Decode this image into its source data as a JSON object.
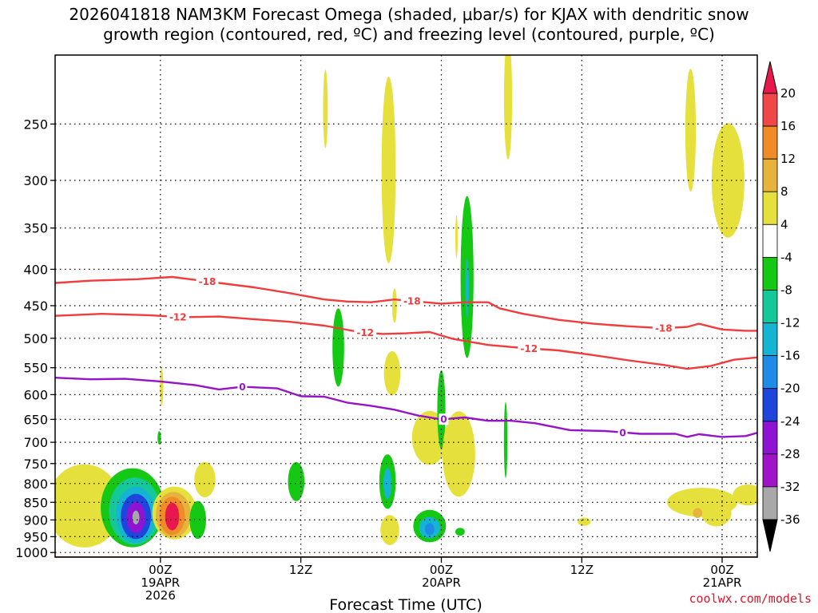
{
  "chart_data": {
    "type": "time-height cross section",
    "title_line1": "2026041818 NAM3KM Forecast Omega (shaded, μbar/s) for KJAX with dendritic snow",
    "title_line2": "growth region (contoured, red, ºC) and freezing level (contoured, purple, ºC)",
    "xlabel": "Forecast Time (UTC)",
    "credit": "coolwx.com/models",
    "y_ticks": [
      {
        "p": 250,
        "label": "250"
      },
      {
        "p": 300,
        "label": "300"
      },
      {
        "p": 350,
        "label": "350"
      },
      {
        "p": 400,
        "label": "400"
      },
      {
        "p": 450,
        "label": "450"
      },
      {
        "p": 500,
        "label": "500"
      },
      {
        "p": 550,
        "label": "550"
      },
      {
        "p": 600,
        "label": "600"
      },
      {
        "p": 650,
        "label": "650"
      },
      {
        "p": 700,
        "label": "700"
      },
      {
        "p": 750,
        "label": "750"
      },
      {
        "p": 800,
        "label": "800"
      },
      {
        "p": 850,
        "label": "850"
      },
      {
        "p": 900,
        "label": "900"
      },
      {
        "p": 950,
        "label": "950"
      },
      {
        "p": 1000,
        "label": "1000"
      }
    ],
    "ylim_hpa": [
      200,
      1015
    ],
    "xlim_hours": [
      -9,
      51
    ],
    "x_ticks": [
      {
        "h": 0,
        "lines": [
          "00Z",
          "19APR",
          "2026"
        ]
      },
      {
        "h": 12,
        "lines": [
          "12Z"
        ]
      },
      {
        "h": 24,
        "lines": [
          "00Z",
          "20APR"
        ]
      },
      {
        "h": 36,
        "lines": [
          "12Z"
        ]
      },
      {
        "h": 48,
        "lines": [
          "00Z",
          "21APR"
        ]
      }
    ],
    "colorbar": {
      "labels": [
        "20",
        "16",
        "12",
        "8",
        "4",
        "-4",
        "-8",
        "-12",
        "-16",
        "-20",
        "-24",
        "-28",
        "-32",
        "-36"
      ],
      "colors": [
        "#e8184e",
        "#f04848",
        "#f08c28",
        "#e6b43c",
        "#e6e03c",
        "#ffffff",
        "#14c814",
        "#14c89a",
        "#14b4d2",
        "#1e8ce6",
        "#1e46dc",
        "#8c14d2",
        "#a014c8",
        "#a8a8a8",
        "#000000"
      ]
    },
    "contours": [
      {
        "name": "-18 °C",
        "label": "-18",
        "color": "#f03c3c",
        "points": [
          [
            -9,
            418
          ],
          [
            -6,
            415
          ],
          [
            -2,
            413
          ],
          [
            1,
            410
          ],
          [
            3,
            414
          ],
          [
            5,
            418
          ],
          [
            8,
            424
          ],
          [
            11,
            432
          ],
          [
            14,
            441
          ],
          [
            16,
            444
          ],
          [
            18,
            445
          ],
          [
            20,
            441
          ],
          [
            22,
            444
          ],
          [
            24,
            447
          ],
          [
            26,
            445
          ],
          [
            28,
            445
          ],
          [
            29,
            454
          ],
          [
            31,
            462
          ],
          [
            34,
            471
          ],
          [
            37,
            477
          ],
          [
            40,
            481
          ],
          [
            43,
            484
          ],
          [
            45,
            482
          ],
          [
            46,
            477
          ],
          [
            48,
            486
          ],
          [
            50,
            488
          ],
          [
            51,
            488
          ]
        ],
        "labels_at_h": [
          4,
          21.5,
          43
        ]
      },
      {
        "name": "-12 °C",
        "label": "-12",
        "color": "#f03c3c",
        "points": [
          [
            -9,
            465
          ],
          [
            -5,
            462
          ],
          [
            -1,
            464
          ],
          [
            2,
            467
          ],
          [
            5,
            466
          ],
          [
            8,
            470
          ],
          [
            11,
            474
          ],
          [
            14,
            480
          ],
          [
            17,
            490
          ],
          [
            19,
            493
          ],
          [
            21,
            492
          ],
          [
            23,
            490
          ],
          [
            25,
            501
          ],
          [
            28,
            511
          ],
          [
            31,
            516
          ],
          [
            34,
            520
          ],
          [
            37,
            528
          ],
          [
            40,
            537
          ],
          [
            43,
            545
          ],
          [
            45,
            552
          ],
          [
            47,
            547
          ],
          [
            49,
            536
          ],
          [
            51,
            532
          ]
        ],
        "labels_at_h": [
          1.5,
          17.5,
          31.5
        ]
      },
      {
        "name": "0 °C freezing level",
        "label": "0",
        "color": "#9614c8",
        "points": [
          [
            -9,
            568
          ],
          [
            -6,
            571
          ],
          [
            -3,
            570
          ],
          [
            0,
            575
          ],
          [
            3,
            582
          ],
          [
            5,
            590
          ],
          [
            7,
            585
          ],
          [
            10,
            588
          ],
          [
            12,
            603
          ],
          [
            14,
            604
          ],
          [
            16,
            616
          ],
          [
            18,
            622
          ],
          [
            20,
            630
          ],
          [
            22,
            642
          ],
          [
            24,
            650
          ],
          [
            26,
            646
          ],
          [
            28,
            653
          ],
          [
            30,
            653
          ],
          [
            32,
            658
          ],
          [
            35,
            673
          ],
          [
            38,
            675
          ],
          [
            41,
            681
          ],
          [
            44,
            681
          ],
          [
            45,
            688
          ],
          [
            46,
            682
          ],
          [
            48,
            688
          ],
          [
            50,
            686
          ],
          [
            51,
            679
          ]
        ],
        "labels_at_h": [
          7,
          24.2,
          39.5
        ]
      }
    ],
    "omega_features": [
      {
        "color": "#e6e03c",
        "h": -6.5,
        "p": 860,
        "rh": 3.2,
        "rp": 115
      },
      {
        "color": "#14c814",
        "h": -2.4,
        "p": 865,
        "rh": 2.7,
        "rp": 110
      },
      {
        "color": "#14c89a",
        "h": -2.2,
        "p": 875,
        "rh": 2.2,
        "rp": 95
      },
      {
        "color": "#14b4d2",
        "h": -2.1,
        "p": 885,
        "rh": 1.7,
        "rp": 80
      },
      {
        "color": "#1e46dc",
        "h": -2.1,
        "p": 890,
        "rh": 1.3,
        "rp": 65
      },
      {
        "color": "#8c14d2",
        "h": -2.1,
        "p": 893,
        "rh": 0.8,
        "rp": 45
      },
      {
        "color": "#a8a8a8",
        "h": -2.1,
        "p": 893,
        "rh": 0.3,
        "rp": 20
      },
      {
        "color": "#e6e03c",
        "h": 1.2,
        "p": 880,
        "rh": 1.9,
        "rp": 75
      },
      {
        "color": "#e6b43c",
        "h": 1.1,
        "p": 885,
        "rh": 1.5,
        "rp": 65
      },
      {
        "color": "#f08c28",
        "h": 1.0,
        "p": 888,
        "rh": 1.1,
        "rp": 55
      },
      {
        "color": "#e8184e",
        "h": 1.0,
        "p": 890,
        "rh": 0.6,
        "rp": 40
      },
      {
        "color": "#14c814",
        "h": 3.2,
        "p": 900,
        "rh": 0.7,
        "rp": 55
      },
      {
        "color": "#e6e03c",
        "h": 3.8,
        "p": 790,
        "rh": 0.9,
        "rp": 45
      },
      {
        "color": "#e6e03c",
        "h": 0.1,
        "p": 585,
        "rh": 0.15,
        "rp": 35
      },
      {
        "color": "#14c814",
        "h": -0.1,
        "p": 690,
        "rh": 0.15,
        "rp": 15
      },
      {
        "color": "#e6e03c",
        "h": 14.1,
        "p": 238,
        "rh": 0.2,
        "rp": 30
      },
      {
        "color": "#e6e03c",
        "h": 19.5,
        "p": 290,
        "rh": 0.6,
        "rp": 85
      },
      {
        "color": "#14c814",
        "h": 15.2,
        "p": 515,
        "rh": 0.5,
        "rp": 65
      },
      {
        "color": "#14c814",
        "h": 11.6,
        "p": 795,
        "rh": 0.7,
        "rp": 50
      },
      {
        "color": "#e6e03c",
        "h": 19.8,
        "p": 560,
        "rh": 0.7,
        "rp": 40
      },
      {
        "color": "#e6e03c",
        "h": 20.0,
        "p": 450,
        "rh": 0.2,
        "rp": 25
      },
      {
        "color": "#e6e03c",
        "h": 19.6,
        "p": 930,
        "rh": 0.8,
        "rp": 45
      },
      {
        "color": "#14c814",
        "h": 19.4,
        "p": 795,
        "rh": 0.7,
        "rp": 70
      },
      {
        "color": "#14b4d2",
        "h": 19.4,
        "p": 800,
        "rh": 0.35,
        "rp": 40
      },
      {
        "color": "#e6e03c",
        "h": 23.0,
        "p": 690,
        "rh": 1.5,
        "rp": 60
      },
      {
        "color": "#14c814",
        "h": 23.0,
        "p": 918,
        "rh": 1.4,
        "rp": 48
      },
      {
        "color": "#14b4d2",
        "h": 23.0,
        "p": 923,
        "rh": 0.9,
        "rp": 32
      },
      {
        "color": "#1e8ce6",
        "h": 23.0,
        "p": 927,
        "rh": 0.4,
        "rp": 18
      },
      {
        "color": "#14c814",
        "h": 24.0,
        "p": 630,
        "rh": 0.35,
        "rp": 80
      },
      {
        "color": "#e6e03c",
        "h": 25.5,
        "p": 727,
        "rh": 1.4,
        "rp": 100
      },
      {
        "color": "#14c814",
        "h": 25.6,
        "p": 935,
        "rh": 0.4,
        "rp": 12
      },
      {
        "color": "#14c814",
        "h": 29.5,
        "p": 695,
        "rh": 0.15,
        "rp": 85
      },
      {
        "color": "#e6e03c",
        "h": 25.3,
        "p": 360,
        "rh": 0.1,
        "rp": 25
      },
      {
        "color": "#14c814",
        "h": 26.2,
        "p": 410,
        "rh": 0.55,
        "rp": 105
      },
      {
        "color": "#14b4d2",
        "h": 26.2,
        "p": 425,
        "rh": 0.15,
        "rp": 40
      },
      {
        "color": "#e6e03c",
        "h": 29.7,
        "p": 230,
        "rh": 0.35,
        "rp": 45
      },
      {
        "color": "#e6e03c",
        "h": 36.2,
        "p": 905,
        "rh": 0.55,
        "rp": 12
      },
      {
        "color": "#e6e03c",
        "h": 45.3,
        "p": 255,
        "rh": 0.45,
        "rp": 50
      },
      {
        "color": "#e6e03c",
        "h": 48.5,
        "p": 300,
        "rh": 1.4,
        "rp": 55
      },
      {
        "color": "#e6e03c",
        "h": 46.3,
        "p": 850,
        "rh": 3.0,
        "rp": 40
      },
      {
        "color": "#e6e03c",
        "h": 47.5,
        "p": 880,
        "rh": 1.3,
        "rp": 38
      },
      {
        "color": "#e6b43c",
        "h": 45.9,
        "p": 880,
        "rh": 0.4,
        "rp": 14
      },
      {
        "color": "#e6e03c",
        "h": 50.2,
        "p": 830,
        "rh": 1.3,
        "rp": 28
      }
    ],
    "ground_fill": {
      "color": "#a0522d",
      "pressure_top_hpa": 1012
    }
  }
}
